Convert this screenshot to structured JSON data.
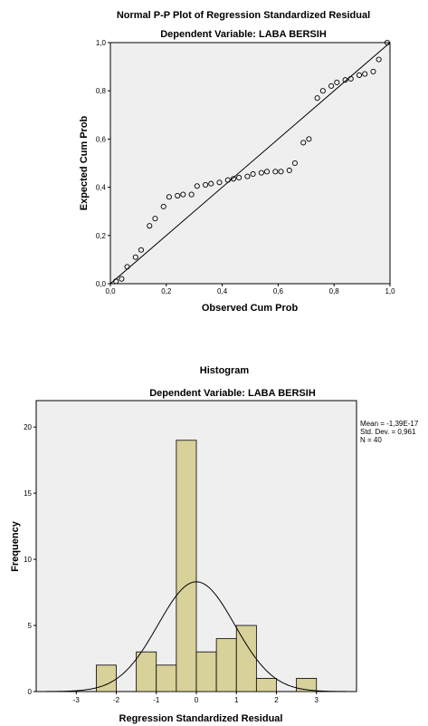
{
  "chart_data": [
    {
      "type": "scatter",
      "title": "Normal P-P Plot of Regression Standardized Residual",
      "subtitle": "Dependent Variable: LABA BERSIH",
      "xlabel": "Observed Cum Prob",
      "ylabel": "Expected Cum Prob",
      "xlim": [
        0,
        1
      ],
      "ylim": [
        0,
        1
      ],
      "x_ticks": [
        "0,0",
        "0,2",
        "0,4",
        "0,6",
        "0,8",
        "1,0"
      ],
      "y_ticks": [
        "0,0",
        "0,2",
        "0,4",
        "0,6",
        "0,8",
        "1,0"
      ],
      "points": [
        [
          0.02,
          0.01
        ],
        [
          0.04,
          0.02
        ],
        [
          0.06,
          0.07
        ],
        [
          0.09,
          0.11
        ],
        [
          0.11,
          0.14
        ],
        [
          0.14,
          0.24
        ],
        [
          0.16,
          0.27
        ],
        [
          0.19,
          0.32
        ],
        [
          0.21,
          0.36
        ],
        [
          0.24,
          0.365
        ],
        [
          0.26,
          0.37
        ],
        [
          0.29,
          0.37
        ],
        [
          0.31,
          0.405
        ],
        [
          0.34,
          0.41
        ],
        [
          0.36,
          0.415
        ],
        [
          0.39,
          0.42
        ],
        [
          0.42,
          0.43
        ],
        [
          0.44,
          0.435
        ],
        [
          0.46,
          0.44
        ],
        [
          0.49,
          0.445
        ],
        [
          0.51,
          0.455
        ],
        [
          0.54,
          0.46
        ],
        [
          0.56,
          0.465
        ],
        [
          0.59,
          0.465
        ],
        [
          0.61,
          0.465
        ],
        [
          0.64,
          0.47
        ],
        [
          0.66,
          0.5
        ],
        [
          0.69,
          0.585
        ],
        [
          0.71,
          0.6
        ],
        [
          0.74,
          0.77
        ],
        [
          0.76,
          0.8
        ],
        [
          0.79,
          0.82
        ],
        [
          0.81,
          0.835
        ],
        [
          0.84,
          0.845
        ],
        [
          0.86,
          0.85
        ],
        [
          0.89,
          0.865
        ],
        [
          0.91,
          0.87
        ],
        [
          0.94,
          0.88
        ],
        [
          0.96,
          0.93
        ],
        [
          0.99,
          1.0
        ]
      ],
      "reference_line": [
        [
          0,
          0
        ],
        [
          1,
          1
        ]
      ],
      "background": "#efefef"
    },
    {
      "type": "bar",
      "title": "Histogram",
      "subtitle": "Dependent Variable: LABA BERSIH",
      "xlabel": "Regression Standardized Residual",
      "ylabel": "Frequency",
      "xlim": [
        -4,
        4
      ],
      "ylim": [
        0,
        22
      ],
      "x_ticks": [
        "-3",
        "-2",
        "-1",
        "0",
        "1",
        "2",
        "3"
      ],
      "y_ticks": [
        "0",
        "5",
        "10",
        "15",
        "20"
      ],
      "bin_width": 0.5,
      "bins": [
        {
          "from": -2.5,
          "to": -2.0,
          "count": 2
        },
        {
          "from": -1.5,
          "to": -1.0,
          "count": 3
        },
        {
          "from": -1.0,
          "to": -0.5,
          "count": 2
        },
        {
          "from": -0.5,
          "to": 0.0,
          "count": 19
        },
        {
          "from": 0.0,
          "to": 0.5,
          "count": 3
        },
        {
          "from": 0.5,
          "to": 1.0,
          "count": 4
        },
        {
          "from": 1.0,
          "to": 1.5,
          "count": 5
        },
        {
          "from": 1.5,
          "to": 2.0,
          "count": 1
        },
        {
          "from": 2.5,
          "to": 3.0,
          "count": 1
        }
      ],
      "normal_curve": {
        "mean": 0,
        "sd": 0.961,
        "n": 40
      },
      "stats": [
        "Mean = -1,39E-17",
        "Std. Dev. = 0,961",
        "N = 40"
      ],
      "bar_color": "#d8d19a",
      "background": "#efefef"
    }
  ]
}
